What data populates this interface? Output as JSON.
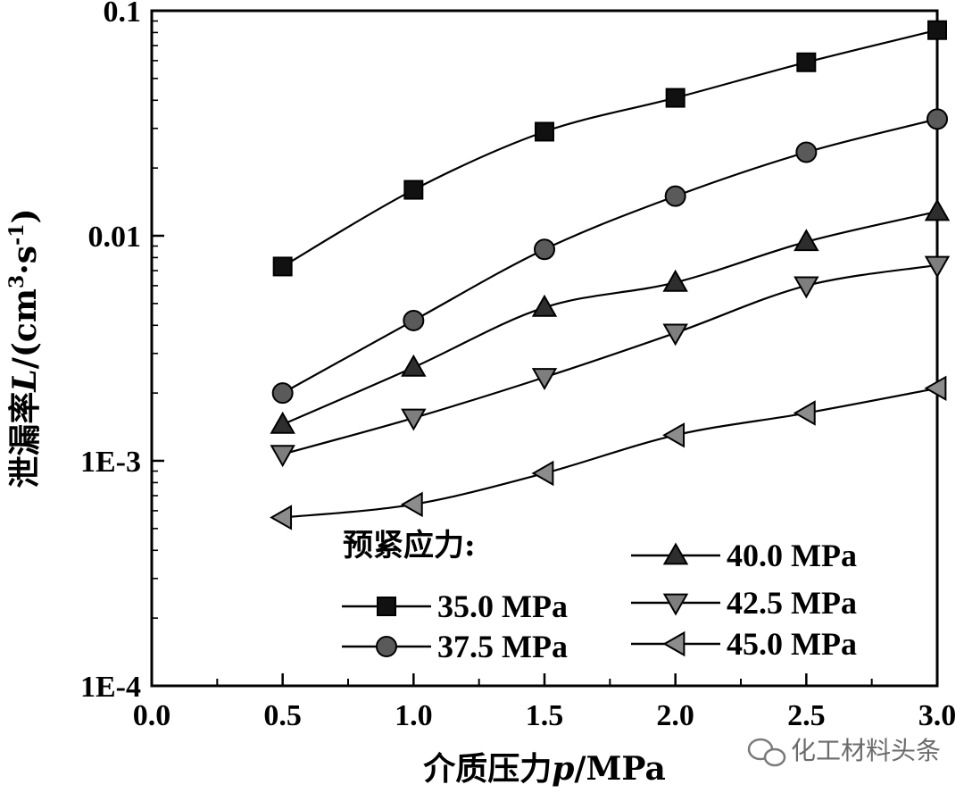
{
  "chart_data": {
    "type": "line",
    "title": "",
    "xlabel_prefix": "介质压力",
    "xlabel_var": "p",
    "xlabel_unit": "/MPa",
    "ylabel_prefix": "泄漏率",
    "ylabel_var": "L",
    "ylabel_unit_pre": "/(cm",
    "ylabel_unit_exp1": "3",
    "ylabel_unit_mid": "·s",
    "ylabel_unit_exp2": "-1",
    "ylabel_unit_post": ")",
    "yscale": "log",
    "xlim": [
      0.0,
      3.0
    ],
    "ylim": [
      0.0001,
      0.1
    ],
    "x_ticks": [
      "0.0",
      "0.5",
      "1.0",
      "1.5",
      "2.0",
      "2.5",
      "3.0"
    ],
    "y_ticks": [
      "1E-4",
      "1E-3",
      "0.01",
      "0.1"
    ],
    "legend_title": "预紧应力:",
    "x": [
      0.5,
      1.0,
      1.5,
      2.0,
      2.5,
      3.0
    ],
    "series": [
      {
        "name": "35.0 MPa",
        "marker": "square",
        "color": "#111111",
        "values": [
          0.0073,
          0.016,
          0.029,
          0.041,
          0.059,
          0.082
        ]
      },
      {
        "name": "37.5 MPa",
        "marker": "circle",
        "color": "#5a5a5a",
        "values": [
          0.002,
          0.0042,
          0.0087,
          0.015,
          0.0235,
          0.033
        ]
      },
      {
        "name": "40.0 MPa",
        "marker": "triangle-up",
        "color": "#2e2e2e",
        "values": [
          0.00145,
          0.0026,
          0.0048,
          0.0062,
          0.0094,
          0.0128
        ]
      },
      {
        "name": "42.5 MPa",
        "marker": "triangle-down",
        "color": "#7e7e7e",
        "values": [
          0.00107,
          0.00155,
          0.00235,
          0.0037,
          0.006,
          0.0074
        ]
      },
      {
        "name": "45.0 MPa",
        "marker": "triangle-left",
        "color": "#8c8c8c",
        "values": [
          0.00056,
          0.00064,
          0.00088,
          0.0013,
          0.00163,
          0.0021
        ]
      }
    ]
  },
  "watermark": {
    "text": "化工材料头条",
    "icon": "wechat-icon"
  }
}
